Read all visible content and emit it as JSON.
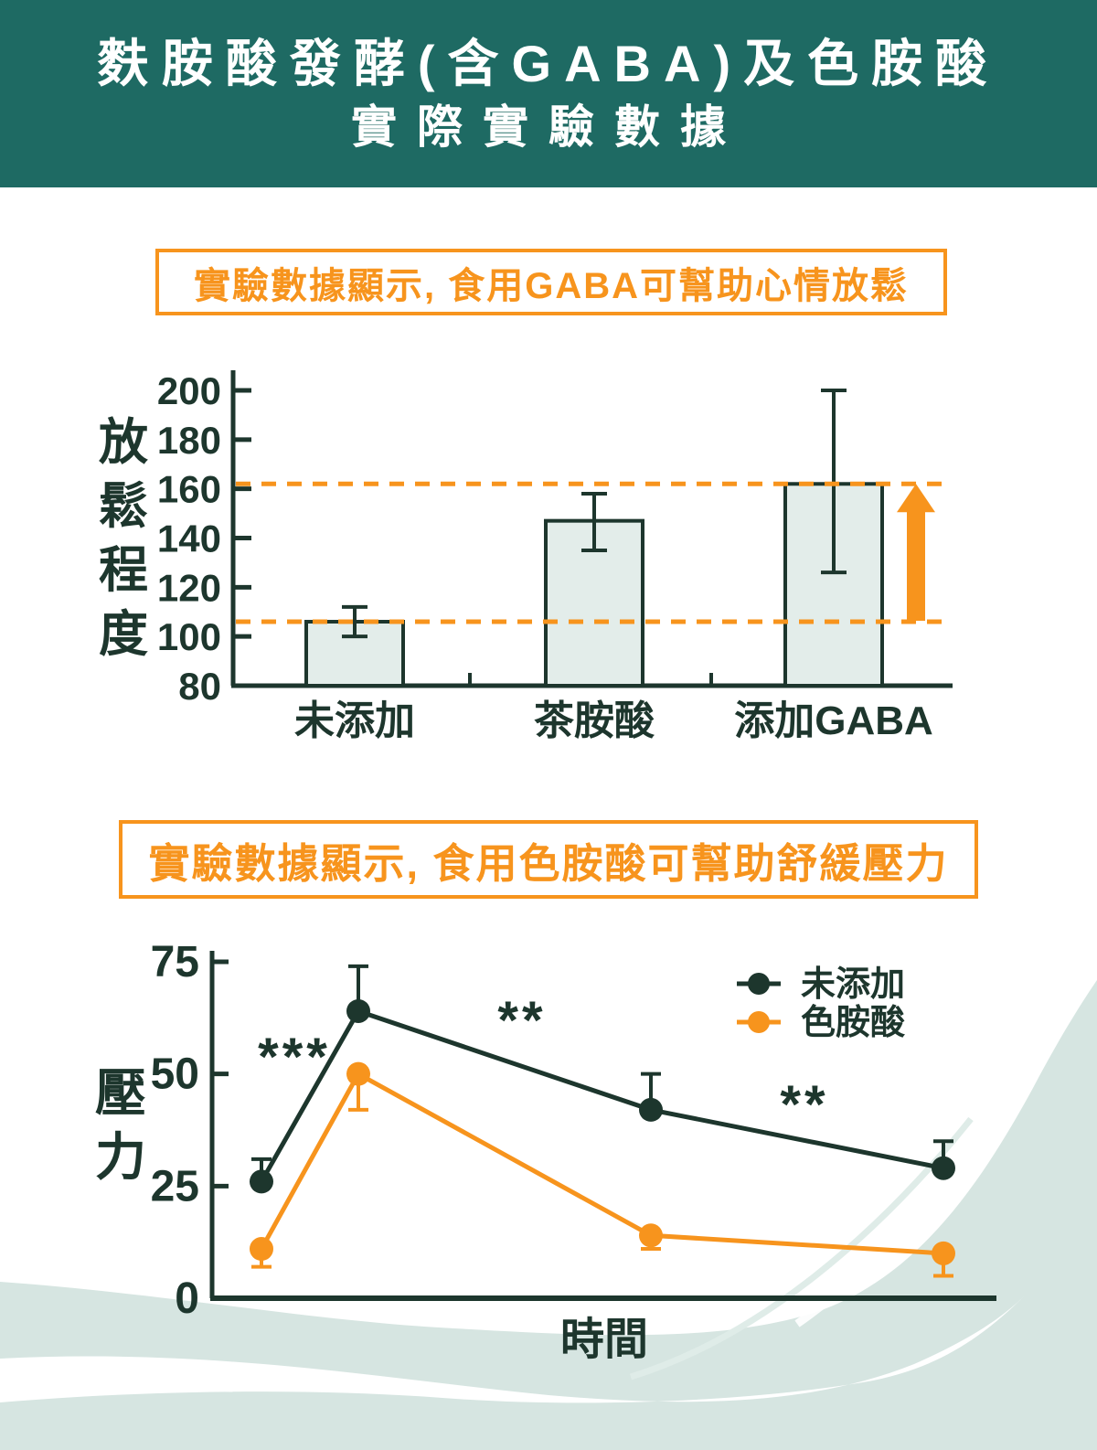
{
  "header": {
    "title_line1": "麩胺酸發酵(含GABA)及色胺酸",
    "title_line2": "實際實驗數據",
    "bg_color": "#1e6a63",
    "text_color": "#ffffff"
  },
  "callouts": [
    {
      "text": "實驗數據顯示, 食用GABA可幫助心情放鬆",
      "color": "#f7941d"
    },
    {
      "text": "實驗數據顯示, 食用色胺酸可幫助舒緩壓力",
      "color": "#f7941d"
    }
  ],
  "colors": {
    "ink": "#1d362d",
    "orange": "#f7941d",
    "bar_fill": "#e3edea",
    "wave": "#d6e5e1",
    "wave_light": "#dfece8",
    "white": "#ffffff"
  },
  "chart_data": [
    {
      "type": "bar",
      "title": "",
      "xlabel": "",
      "ylabel": "放鬆程度",
      "categories": [
        "未添加",
        "茶胺酸",
        "添加GABA"
      ],
      "values": [
        106,
        147,
        162
      ],
      "error_low": [
        100,
        135,
        126
      ],
      "error_high": [
        112,
        158,
        200
      ],
      "ylim": [
        80,
        200
      ],
      "yticks": [
        200,
        180,
        160,
        140,
        120,
        100,
        80
      ],
      "reference_lines": [
        162,
        106
      ],
      "highlight_arrow": "up",
      "grid": false
    },
    {
      "type": "line",
      "title": "",
      "xlabel": "時間",
      "ylabel": "壓力",
      "ylim": [
        0,
        75
      ],
      "yticks": [
        75,
        50,
        25,
        0
      ],
      "x_count": 4,
      "series": [
        {
          "name": "未添加",
          "color": "#1d362d",
          "values": [
            26,
            64,
            42,
            29
          ],
          "error_up": [
            5,
            10,
            8,
            6
          ]
        },
        {
          "name": "色胺酸",
          "color": "#f7941d",
          "values": [
            11,
            50,
            14,
            10
          ],
          "error_down": [
            4,
            8,
            3,
            5
          ]
        }
      ],
      "significance": [
        "***",
        "**",
        "**"
      ],
      "legend_position": "top-right",
      "grid": false
    }
  ]
}
